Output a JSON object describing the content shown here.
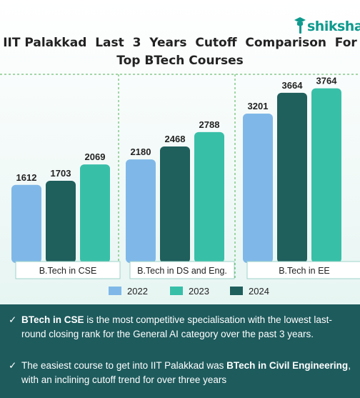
{
  "brand": {
    "name": "shiksha",
    "icon": "graduation-cap-icon"
  },
  "title": {
    "line1": "IIT Palakkad  Last  3  Years  Cutoff  Comparison  For",
    "line2": "Top BTech Courses"
  },
  "colors": {
    "2022": "#7fb8e8",
    "2023": "#38bfa8",
    "2024": "#1f5f5c",
    "footer": "#1e5b5d"
  },
  "chart_data": {
    "type": "bar",
    "title": "IIT Palakkad Last 3 Years Cutoff Comparison For Top BTech Courses",
    "categories": [
      "B.Tech in CSE",
      "B.Tech in DS and Eng.",
      "B.Tech in EE"
    ],
    "series": [
      {
        "name": "2022",
        "values": [
          1612,
          2180,
          3201
        ]
      },
      {
        "name": "2024",
        "values": [
          1703,
          2468,
          3664
        ]
      },
      {
        "name": "2023",
        "values": [
          2069,
          2788,
          3764
        ]
      }
    ],
    "legend": [
      "2022",
      "2023",
      "2024"
    ],
    "legend_position": "bottom",
    "ylim": [
      0,
      4000
    ],
    "grid": false
  },
  "notes": [
    {
      "bold": "BTech in CSE",
      "rest": " is the most competitive specialisation with the lowest last-round closing rank for the General AI category over the past 3 years."
    },
    {
      "pre": "The easiest course to get into IIT Palakkad was ",
      "bold": "BTech in Civil Engineering",
      "rest": ", with an inclining cutoff trend for over three years"
    }
  ],
  "tick_glyph": "✓"
}
